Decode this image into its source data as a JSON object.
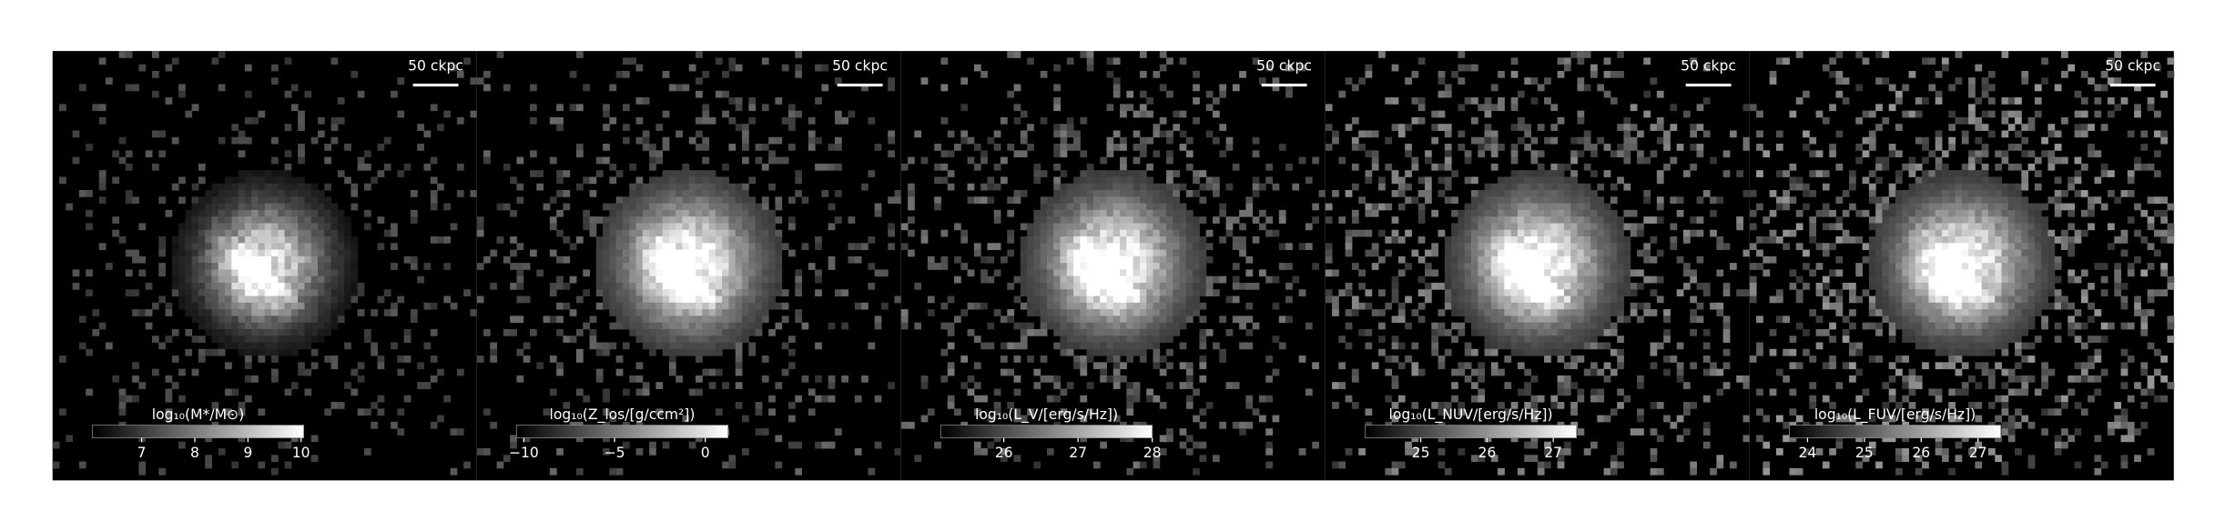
{
  "chart_data": [
    {
      "type": "image",
      "scale_bar": "50 ckpc",
      "colorbar_label": "log₁₀(M*/M⊙)",
      "clim": [
        6.07,
        10.05
      ],
      "ticks": [
        7,
        8,
        9,
        10
      ]
    },
    {
      "type": "image",
      "scale_bar": "50 ckpc",
      "colorbar_label": "log₁₀(Z_los/[g/ccm²])",
      "clim": [
        -10.4,
        1.25
      ],
      "ticks": [
        {
          "value": -10,
          "label": "−10"
        },
        {
          "value": -5,
          "label": "−5"
        },
        0
      ]
    },
    {
      "type": "image",
      "scale_bar": "50 ckpc",
      "colorbar_label": "log₁₀(L_V/[erg/s/Hz])",
      "clim": [
        25.15,
        28.0
      ],
      "ticks": [
        26,
        27,
        28
      ]
    },
    {
      "type": "image",
      "scale_bar": "50 ckpc",
      "colorbar_label": "log₁₀(L_NUV/[erg/s/Hz])",
      "clim": [
        24.16,
        27.35
      ],
      "ticks": [
        25,
        26,
        27
      ]
    },
    {
      "type": "image",
      "scale_bar": "50 ckpc",
      "colorbar_label": "log₁₀(L_FUV/[erg/s/Hz])",
      "clim": [
        23.68,
        27.4
      ],
      "ticks": [
        24,
        25,
        26,
        27
      ]
    }
  ]
}
